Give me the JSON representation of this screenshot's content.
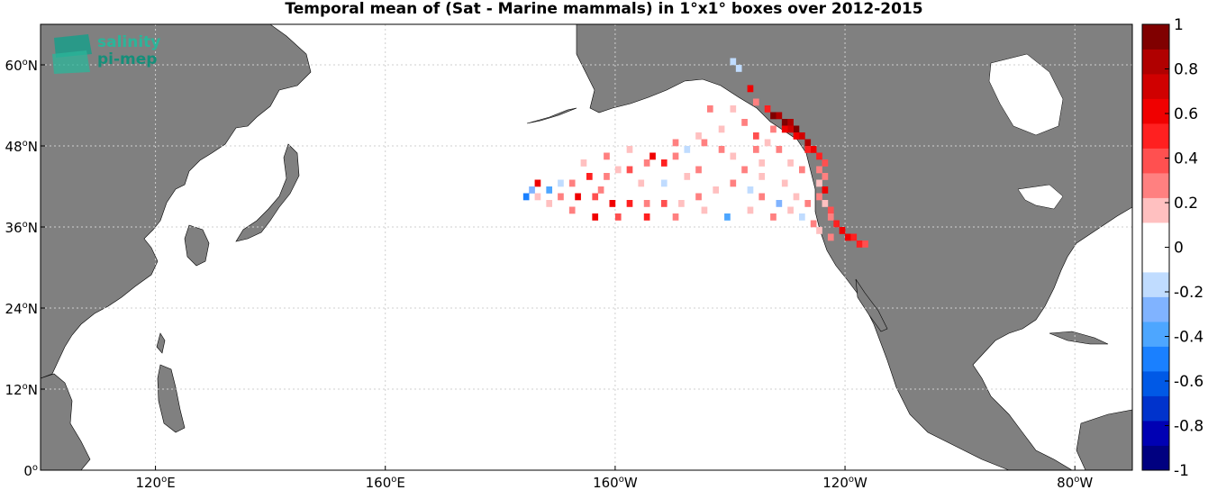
{
  "title": "Temporal mean of (Sat - Marine mammals) in 1°x1° boxes over 2012-2015",
  "logo": {
    "line1": "salinity",
    "line2": "pi-mep"
  },
  "chart_data": {
    "type": "heatmap",
    "title": "Temporal mean of (Sat - Marine mammals) in 1°x1° boxes over 2012-2015",
    "projection": "equirectangular",
    "lon_range": [
      100,
      290
    ],
    "lat_range": [
      0,
      66
    ],
    "x_ticks": [
      {
        "value": 120,
        "deg": "120",
        "hem": "E"
      },
      {
        "value": 160,
        "deg": "160",
        "hem": "E"
      },
      {
        "value": 200,
        "deg": "160",
        "hem": "W"
      },
      {
        "value": 240,
        "deg": "120",
        "hem": "W"
      },
      {
        "value": 280,
        "deg": "80",
        "hem": "W"
      }
    ],
    "y_ticks": [
      {
        "value": 0,
        "deg": "0",
        "hem": ""
      },
      {
        "value": 12,
        "deg": "12",
        "hem": "N"
      },
      {
        "value": 24,
        "deg": "24",
        "hem": "N"
      },
      {
        "value": 36,
        "deg": "36",
        "hem": "N"
      },
      {
        "value": 48,
        "deg": "48",
        "hem": "N"
      },
      {
        "value": 60,
        "deg": "60",
        "hem": "N"
      }
    ],
    "grid": true,
    "colorbar": {
      "range": [
        -1,
        1
      ],
      "ticks": [
        "1",
        "0.8",
        "0.6",
        "0.4",
        "0.2",
        "0",
        "-0.2",
        "-0.4",
        "-0.6",
        "-0.8",
        "-1"
      ],
      "colors": [
        "#000080",
        "#0000b3",
        "#0033cc",
        "#0059e6",
        "#1a80ff",
        "#4da6ff",
        "#80b3ff",
        "#c0dcff",
        "#ffffff",
        "#ffffff",
        "#ffc0c0",
        "#ff8080",
        "#ff5050",
        "#ff2020",
        "#f00000",
        "#d00000",
        "#b00000",
        "#800000"
      ]
    },
    "land_color": "#808080",
    "cells": [
      [
        -140,
        60,
        -0.2
      ],
      [
        -139,
        59,
        -0.15
      ],
      [
        -137,
        56,
        0.6
      ],
      [
        -136,
        54,
        0.3
      ],
      [
        -134,
        53,
        0.5
      ],
      [
        -133,
        52,
        0.9
      ],
      [
        -132,
        52,
        0.85
      ],
      [
        -131,
        51,
        0.9
      ],
      [
        -130,
        51,
        0.8
      ],
      [
        -129,
        50,
        0.9
      ],
      [
        -130,
        50,
        0.7
      ],
      [
        -131,
        50,
        0.6
      ],
      [
        -128,
        49,
        0.7
      ],
      [
        -129,
        49,
        0.6
      ],
      [
        -127,
        48,
        0.8
      ],
      [
        -126,
        47,
        0.6
      ],
      [
        -127,
        47,
        0.5
      ],
      [
        -125,
        46,
        0.5
      ],
      [
        -124,
        45,
        0.4
      ],
      [
        -125,
        44,
        0.3
      ],
      [
        -124,
        43,
        0.3
      ],
      [
        -125,
        42,
        0.2
      ],
      [
        -124,
        41,
        0.6
      ],
      [
        -125,
        40,
        0.3
      ],
      [
        -124,
        39,
        0.2
      ],
      [
        -123,
        38,
        0.4
      ],
      [
        -123,
        37,
        0.3
      ],
      [
        -122,
        36,
        0.5
      ],
      [
        -121,
        35,
        0.6
      ],
      [
        -120,
        34,
        0.6
      ],
      [
        -119,
        34,
        0.5
      ],
      [
        -118,
        33,
        0.5
      ],
      [
        -117,
        33,
        0.4
      ],
      [
        -134,
        48,
        0.2
      ],
      [
        -136,
        47,
        0.3
      ],
      [
        -132,
        47,
        0.3
      ],
      [
        -135,
        45,
        0.2
      ],
      [
        -138,
        44,
        0.3
      ],
      [
        -140,
        46,
        0.2
      ],
      [
        -142,
        47,
        0.3
      ],
      [
        -145,
        48,
        0.3
      ],
      [
        -148,
        47,
        -0.2
      ],
      [
        -150,
        46,
        0.3
      ],
      [
        -152,
        45,
        0.5
      ],
      [
        -155,
        45,
        0.3
      ],
      [
        -158,
        44,
        0.4
      ],
      [
        -160,
        44,
        0.2
      ],
      [
        -162,
        43,
        0.3
      ],
      [
        -165,
        43,
        0.5
      ],
      [
        -168,
        42,
        0.3
      ],
      [
        -170,
        42,
        -0.2
      ],
      [
        -172,
        41,
        -0.4
      ],
      [
        -174,
        42,
        0.6
      ],
      [
        -175,
        41,
        -0.3
      ],
      [
        -176,
        40,
        -0.5
      ],
      [
        -174,
        40,
        0.2
      ],
      [
        -170,
        40,
        0.3
      ],
      [
        -167,
        40,
        0.6
      ],
      [
        -164,
        40,
        0.4
      ],
      [
        -161,
        39,
        0.6
      ],
      [
        -158,
        39,
        0.5
      ],
      [
        -155,
        39,
        0.3
      ],
      [
        -152,
        39,
        0.4
      ],
      [
        -149,
        39,
        0.2
      ],
      [
        -146,
        40,
        0.3
      ],
      [
        -143,
        41,
        0.2
      ],
      [
        -140,
        42,
        0.3
      ],
      [
        -137,
        41,
        -0.2
      ],
      [
        -135,
        40,
        0.3
      ],
      [
        -132,
        39,
        -0.3
      ],
      [
        -130,
        38,
        0.2
      ],
      [
        -128,
        37,
        -0.2
      ],
      [
        -133,
        37,
        0.3
      ],
      [
        -137,
        38,
        0.2
      ],
      [
        -141,
        37,
        -0.4
      ],
      [
        -145,
        38,
        0.2
      ],
      [
        -150,
        37,
        0.3
      ],
      [
        -155,
        37,
        0.5
      ],
      [
        -160,
        37,
        0.4
      ],
      [
        -164,
        37,
        0.6
      ],
      [
        -168,
        38,
        0.3
      ],
      [
        -172,
        39,
        0.2
      ],
      [
        -166,
        45,
        0.2
      ],
      [
        -162,
        46,
        0.3
      ],
      [
        -158,
        47,
        0.2
      ],
      [
        -154,
        46,
        0.6
      ],
      [
        -150,
        48,
        0.3
      ],
      [
        -146,
        49,
        0.2
      ],
      [
        -142,
        50,
        0.2
      ],
      [
        -138,
        51,
        0.3
      ],
      [
        -140,
        53,
        0.2
      ],
      [
        -144,
        53,
        0.3
      ],
      [
        -136,
        49,
        0.4
      ],
      [
        -133,
        50,
        0.3
      ],
      [
        -135,
        43,
        0.2
      ],
      [
        -130,
        45,
        0.2
      ],
      [
        -128,
        44,
        0.3
      ],
      [
        -131,
        42,
        0.2
      ],
      [
        -129,
        40,
        0.2
      ],
      [
        -127,
        39,
        0.3
      ],
      [
        -126,
        36,
        0.3
      ],
      [
        -125,
        35,
        0.2
      ],
      [
        -123,
        34,
        0.3
      ],
      [
        -146,
        44,
        0.3
      ],
      [
        -156,
        42,
        0.2
      ],
      [
        -163,
        41,
        0.3
      ],
      [
        -152,
        42,
        -0.2
      ],
      [
        -148,
        43,
        0.2
      ]
    ]
  }
}
